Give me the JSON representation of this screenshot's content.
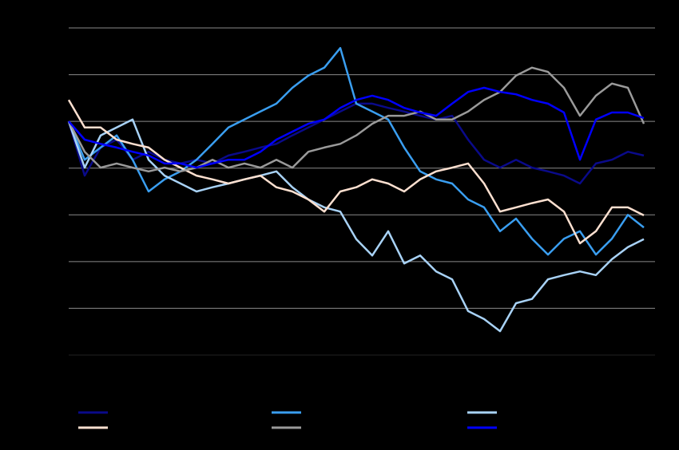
{
  "chart_data": {
    "type": "line",
    "categories": [
      null,
      null,
      null,
      null,
      null,
      null,
      null,
      null,
      null,
      null,
      null,
      null,
      null,
      null,
      null,
      null,
      null,
      null,
      null,
      null,
      null,
      null,
      null,
      null,
      null,
      null,
      null,
      null,
      null,
      null,
      null,
      null,
      null,
      null,
      null,
      null,
      null
    ],
    "ylim": [
      0,
      7
    ],
    "yticks": [
      0,
      1,
      2,
      3,
      4,
      5,
      6,
      7
    ],
    "grid": true,
    "series": [
      {
        "color": "#0a0a8a",
        "values": [
          5.0,
          3.84,
          4.44,
          4.61,
          4.18,
          4.35,
          4.18,
          4.1,
          4.18,
          4.1,
          4.27,
          4.35,
          4.44,
          4.52,
          4.7,
          4.87,
          5.04,
          5.21,
          5.38,
          5.38,
          5.29,
          5.21,
          5.12,
          5.04,
          5.12,
          4.61,
          4.18,
          4.01,
          4.18,
          4.01,
          3.93,
          3.84,
          3.67,
          4.1,
          4.18,
          4.35,
          4.27
        ]
      },
      {
        "color": "#3a9ef0",
        "values": [
          5.0,
          4.18,
          4.44,
          4.7,
          4.18,
          3.5,
          3.76,
          3.93,
          4.18,
          4.52,
          4.87,
          5.04,
          5.21,
          5.38,
          5.72,
          5.98,
          6.15,
          6.57,
          5.38,
          5.21,
          5.04,
          4.44,
          3.93,
          3.76,
          3.67,
          3.33,
          3.16,
          2.65,
          2.92,
          2.49,
          2.15,
          2.49,
          2.65,
          2.15,
          2.49,
          3.0,
          2.73
        ]
      },
      {
        "color": "#a8d2f6",
        "values": [
          5.0,
          4.01,
          4.7,
          4.87,
          5.04,
          4.18,
          3.84,
          3.67,
          3.5,
          3.59,
          3.67,
          3.76,
          3.84,
          3.93,
          3.59,
          3.33,
          3.16,
          3.07,
          2.48,
          2.13,
          2.65,
          1.96,
          2.13,
          1.79,
          1.62,
          0.94,
          0.77,
          0.51,
          1.11,
          1.2,
          1.62,
          1.71,
          1.79,
          1.71,
          2.05,
          2.31,
          2.48
        ]
      },
      {
        "color": "#fde0d0",
        "values": [
          5.46,
          4.87,
          4.87,
          4.61,
          4.52,
          4.44,
          4.18,
          4.01,
          3.84,
          3.76,
          3.67,
          3.76,
          3.84,
          3.59,
          3.5,
          3.33,
          3.07,
          3.5,
          3.59,
          3.76,
          3.67,
          3.5,
          3.76,
          3.93,
          4.01,
          4.1,
          3.67,
          3.07,
          3.16,
          3.25,
          3.33,
          3.07,
          2.39,
          2.65,
          3.16,
          3.16,
          2.99
        ]
      },
      {
        "color": "#9a9a9a",
        "values": [
          5.0,
          4.35,
          4.01,
          4.1,
          4.01,
          3.93,
          4.01,
          3.93,
          4.01,
          4.18,
          4.01,
          4.1,
          4.01,
          4.18,
          4.01,
          4.35,
          4.44,
          4.52,
          4.7,
          4.95,
          5.12,
          5.12,
          5.21,
          5.04,
          5.04,
          5.21,
          5.46,
          5.63,
          5.98,
          6.15,
          6.06,
          5.72,
          5.12,
          5.55,
          5.81,
          5.72,
          4.95
        ]
      },
      {
        "color": "#0000ff",
        "values": [
          5.0,
          4.61,
          4.52,
          4.44,
          4.35,
          4.27,
          4.1,
          4.1,
          4.01,
          4.1,
          4.18,
          4.18,
          4.35,
          4.61,
          4.78,
          4.95,
          5.04,
          5.29,
          5.46,
          5.55,
          5.46,
          5.29,
          5.19,
          5.12,
          5.38,
          5.63,
          5.72,
          5.63,
          5.58,
          5.46,
          5.38,
          5.19,
          4.18,
          5.04,
          5.19,
          5.19,
          5.07
        ]
      }
    ]
  }
}
